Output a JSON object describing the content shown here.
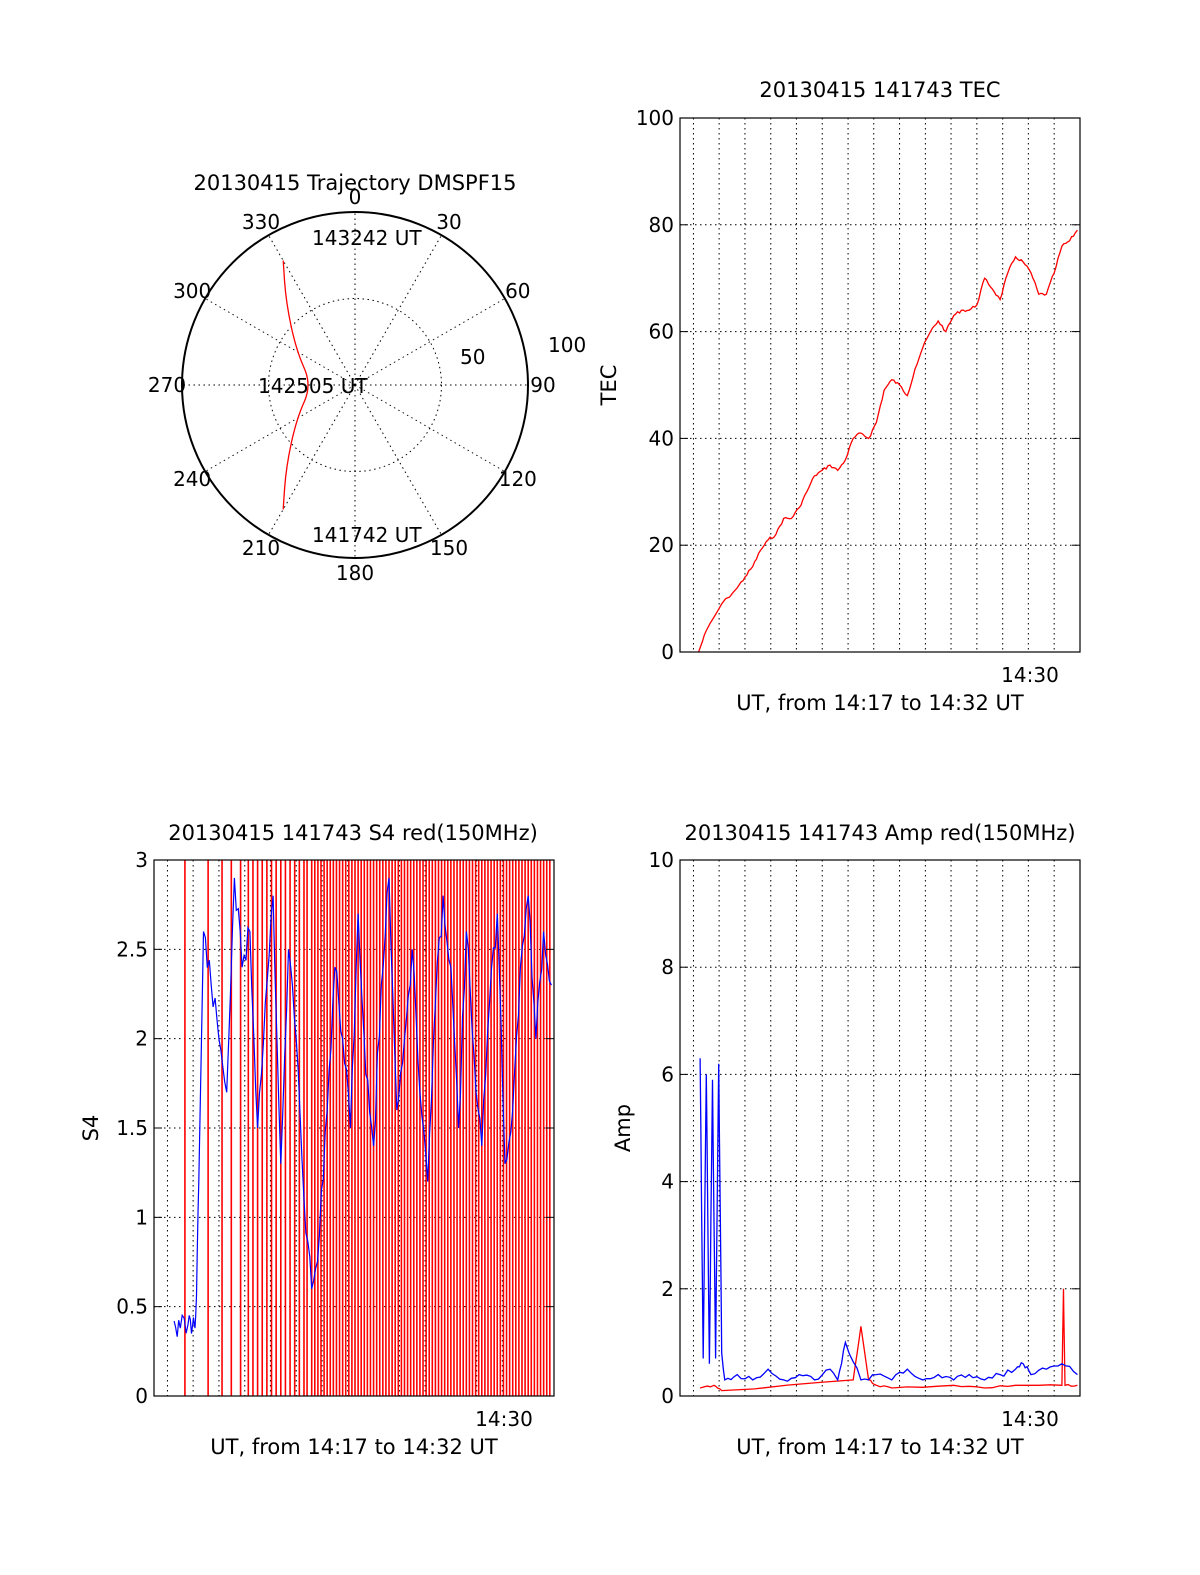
{
  "chart_data": [
    {
      "type": "polar",
      "title": "20130415 Trajectory DMSPF15",
      "angle_labels": [
        "0",
        "30",
        "60",
        "90",
        "120",
        "150",
        "180",
        "210",
        "240",
        "270",
        "300",
        "330"
      ],
      "radial_ticks": [
        "50",
        "100"
      ],
      "rlim": [
        0,
        100
      ],
      "annotations": [
        "143242 UT",
        "142505 UT",
        "141742 UT"
      ],
      "series": [
        {
          "color": "#ff0000",
          "points": [
            [
              210,
              83
            ],
            [
              220,
              62
            ],
            [
              240,
              39
            ],
            [
              270,
              25
            ],
            [
              300,
              39
            ],
            [
              320,
              62
            ],
            [
              330,
              83
            ]
          ]
        }
      ]
    },
    {
      "type": "line",
      "title": "20130415 141743 TEC",
      "xlabel": "UT, from 14:17 to 14:32 UT",
      "ylabel": "TEC",
      "xlim": [
        14.283,
        14.5417
      ],
      "ylim": [
        0,
        100
      ],
      "yticks": [
        "0",
        "20",
        "40",
        "60",
        "80",
        "100"
      ],
      "xtick_labels": [
        {
          "x": 14.5,
          "label": "14:30"
        }
      ],
      "grid": true,
      "series": [
        {
          "color": "#ff0000",
          "x": [
            14.295,
            14.3,
            14.31,
            14.32,
            14.325,
            14.33,
            14.335,
            14.34,
            14.345,
            14.35,
            14.355,
            14.36,
            14.365,
            14.37,
            14.375,
            14.38,
            14.385,
            14.39,
            14.395,
            14.4,
            14.405,
            14.41,
            14.415,
            14.42,
            14.425,
            14.43,
            14.435,
            14.44,
            14.445,
            14.45,
            14.455,
            14.46,
            14.465,
            14.47,
            14.475,
            14.48,
            14.485,
            14.49,
            14.495,
            14.5,
            14.505,
            14.51,
            14.515,
            14.52,
            14.525,
            14.53,
            14.535,
            14.54
          ],
          "y": [
            0,
            4,
            9,
            12,
            14,
            16,
            19,
            21,
            22,
            25,
            25,
            27,
            30,
            33,
            34,
            35,
            34,
            36,
            40,
            41,
            40,
            43,
            49,
            51,
            50,
            48,
            53,
            57,
            60,
            62,
            60,
            63,
            64,
            64,
            65,
            70,
            68,
            66,
            71,
            74,
            73,
            71,
            67,
            67,
            71,
            76,
            77,
            79
          ]
        }
      ]
    },
    {
      "type": "line",
      "title": "20130415 141743 S4 red(150MHz)",
      "xlabel": "UT, from 14:17 to 14:32 UT",
      "ylabel": "S4",
      "xlim": [
        14.283,
        14.5417
      ],
      "ylim": [
        0,
        3
      ],
      "yticks": [
        "0",
        "0.5",
        "1",
        "1.5",
        "2",
        "2.5",
        "3"
      ],
      "xtick_labels": [
        {
          "x": 14.5,
          "label": "14:30"
        }
      ],
      "grid": true,
      "series": [
        {
          "color": "#0000ff",
          "x": [
            14.296,
            14.3,
            14.305,
            14.308,
            14.31,
            14.312,
            14.315,
            14.32,
            14.325,
            14.33,
            14.335,
            14.34,
            14.345,
            14.35,
            14.355,
            14.36,
            14.365,
            14.37,
            14.375,
            14.38,
            14.385,
            14.39,
            14.395,
            14.4,
            14.405,
            14.41,
            14.415,
            14.42,
            14.425,
            14.43,
            14.435,
            14.44,
            14.445,
            14.45,
            14.455,
            14.46,
            14.465,
            14.47,
            14.475,
            14.48,
            14.485,
            14.49,
            14.495,
            14.5,
            14.505,
            14.51,
            14.515,
            14.52,
            14.525,
            14.53,
            14.535,
            14.54
          ],
          "y": [
            0.42,
            0.38,
            0.4,
            0.4,
            0.45,
            1.2,
            2.6,
            2.3,
            2.0,
            1.7,
            2.9,
            2.4,
            2.6,
            1.5,
            2.2,
            2.8,
            1.3,
            2.5,
            2.0,
            1.1,
            0.6,
            0.9,
            1.6,
            2.4,
            2.0,
            1.5,
            2.7,
            1.8,
            1.4,
            2.3,
            2.9,
            1.6,
            2.0,
            2.5,
            1.7,
            1.2,
            2.2,
            2.8,
            2.4,
            1.5,
            2.6,
            1.9,
            1.4,
            2.2,
            2.7,
            1.3,
            1.6,
            2.4,
            2.8,
            2.0,
            2.6,
            2.3
          ]
        },
        {
          "color": "#ff0000",
          "style": "spikes",
          "x": [
            14.303,
            14.318,
            14.327,
            14.333,
            14.339,
            14.344,
            14.347,
            14.35,
            14.353,
            14.356,
            14.359,
            14.362,
            14.365,
            14.368,
            14.371,
            14.374,
            14.377,
            14.38,
            14.382,
            14.385,
            14.387,
            14.389,
            14.391,
            14.393,
            14.395,
            14.397,
            14.399,
            14.401,
            14.403,
            14.405,
            14.407,
            14.409,
            14.411,
            14.413,
            14.415,
            14.417,
            14.419,
            14.421,
            14.423,
            14.425,
            14.427,
            14.429,
            14.431,
            14.433,
            14.435,
            14.437,
            14.439,
            14.441,
            14.443,
            14.445,
            14.447,
            14.449,
            14.451,
            14.453,
            14.455,
            14.457,
            14.459,
            14.461,
            14.463,
            14.465,
            14.467,
            14.469,
            14.471,
            14.473,
            14.475,
            14.477,
            14.479,
            14.481,
            14.483,
            14.485,
            14.487,
            14.489,
            14.491,
            14.493,
            14.495,
            14.497,
            14.499,
            14.501,
            14.503,
            14.505,
            14.507,
            14.509,
            14.511,
            14.513,
            14.515,
            14.517,
            14.519,
            14.521,
            14.523,
            14.525,
            14.527,
            14.529,
            14.531,
            14.533,
            14.535,
            14.537,
            14.539
          ],
          "y": [
            3,
            3,
            3,
            3,
            3,
            3,
            3,
            3,
            3,
            3,
            3,
            3,
            3,
            3,
            3,
            3,
            3,
            3,
            3,
            3,
            3,
            3,
            3,
            3,
            3,
            3,
            3,
            3,
            3,
            3,
            3,
            3,
            3,
            3,
            3,
            3,
            3,
            3,
            3,
            3,
            3,
            3,
            3,
            3,
            3,
            3,
            3,
            3,
            3,
            3,
            3,
            3,
            3,
            3,
            3,
            3,
            3,
            3,
            3,
            3,
            3,
            3,
            3,
            3,
            3,
            3,
            3,
            3,
            3,
            3,
            3,
            3,
            3,
            3,
            3,
            3,
            3,
            3,
            3,
            3,
            3,
            3,
            3,
            3,
            3,
            3,
            3,
            3,
            3,
            3,
            3,
            3,
            3,
            3,
            3,
            3,
            3
          ]
        }
      ]
    },
    {
      "type": "line",
      "title": "20130415 141743 Amp red(150MHz)",
      "xlabel": "UT, from 14:17 to 14:32 UT",
      "ylabel": "Amp",
      "xlim": [
        14.283,
        14.5417
      ],
      "ylim": [
        0,
        10
      ],
      "yticks": [
        "0",
        "2",
        "4",
        "6",
        "8",
        "10"
      ],
      "xtick_labels": [
        {
          "x": 14.5,
          "label": "14:30"
        }
      ],
      "grid": true,
      "series": [
        {
          "color": "#0000ff",
          "x": [
            14.296,
            14.298,
            14.3,
            14.302,
            14.304,
            14.306,
            14.308,
            14.31,
            14.312,
            14.32,
            14.33,
            14.34,
            14.35,
            14.36,
            14.37,
            14.38,
            14.385,
            14.39,
            14.4,
            14.41,
            14.42,
            14.43,
            14.44,
            14.45,
            14.46,
            14.47,
            14.48,
            14.49,
            14.5,
            14.505,
            14.51,
            14.52,
            14.53,
            14.54
          ],
          "y": [
            6.3,
            0.7,
            6.0,
            0.6,
            5.9,
            0.7,
            6.2,
            0.8,
            0.3,
            0.4,
            0.3,
            0.5,
            0.3,
            0.4,
            0.3,
            0.5,
            0.3,
            1.0,
            0.3,
            0.4,
            0.3,
            0.5,
            0.3,
            0.4,
            0.3,
            0.4,
            0.3,
            0.4,
            0.5,
            0.6,
            0.4,
            0.5,
            0.6,
            0.4
          ]
        },
        {
          "color": "#ff0000",
          "x": [
            14.296,
            14.305,
            14.31,
            14.395,
            14.4,
            14.405,
            14.41,
            14.42,
            14.46,
            14.48,
            14.5,
            14.53,
            14.531,
            14.532,
            14.54
          ],
          "y": [
            0.15,
            0.2,
            0.1,
            0.3,
            1.3,
            0.3,
            0.2,
            0.15,
            0.2,
            0.15,
            0.2,
            0.2,
            2.0,
            0.2,
            0.2
          ]
        }
      ]
    }
  ]
}
